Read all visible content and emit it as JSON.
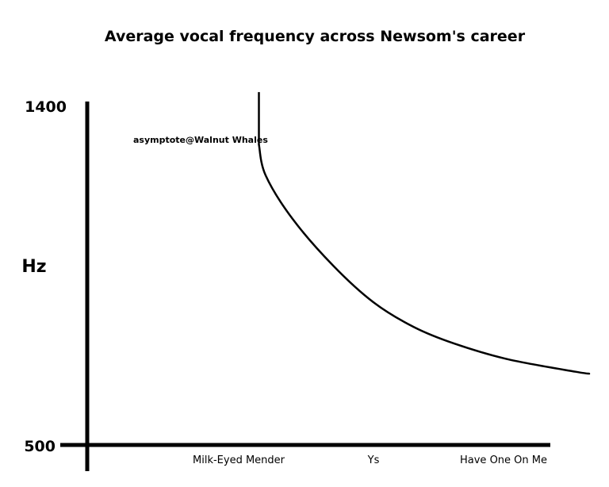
{
  "chart_data": {
    "type": "line",
    "title": "Average vocal frequency across Newsom's career",
    "ylabel": "Hz",
    "xlabel": "",
    "ylim": [
      500,
      1400
    ],
    "yticks": [
      "1400",
      "500"
    ],
    "categories": [
      "Milk-Eyed Mender",
      "Ys",
      "Have One On Me"
    ],
    "annotation": "asymptote@Walnut Whales",
    "series": [
      {
        "x": [
          0.15,
          0.2,
          0.4,
          0.7,
          1.0,
          1.3,
          1.6,
          2.0,
          2.5,
          2.6
        ],
        "y": [
          1300,
          1218,
          1102,
          978,
          880,
          814,
          770,
          728,
          695,
          690
        ]
      }
    ],
    "asymptote": {
      "x": 0.15,
      "y_top": 1440,
      "y_bottom": 1300
    },
    "grid": false,
    "legend": "none"
  }
}
